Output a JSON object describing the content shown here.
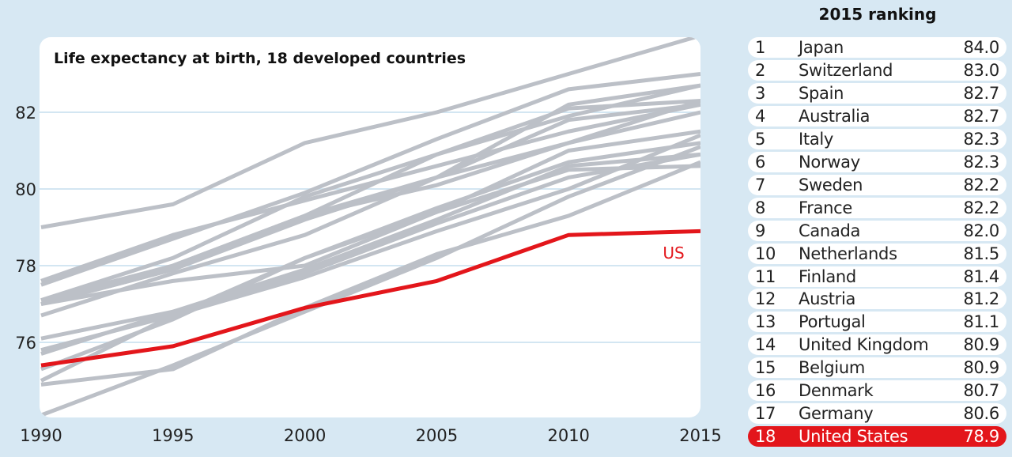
{
  "chart_data": {
    "type": "line",
    "title": "Life expectancy at birth, 18 developed countries",
    "xlabel": "",
    "ylabel": "",
    "x": [
      1990,
      1995,
      2000,
      2005,
      2010,
      2015
    ],
    "xticks": [
      "1990",
      "1995",
      "2000",
      "2005",
      "2010",
      "2015"
    ],
    "yticks": [
      "76",
      "78",
      "80",
      "82"
    ],
    "ytick_values": [
      76,
      78,
      80,
      82
    ],
    "xlim": [
      1990,
      2015
    ],
    "ylim": [
      74,
      84
    ],
    "grid": true,
    "colors": {
      "highlight": "#e3161b",
      "others": "#bcc0c7",
      "grid": "#d3e6f2",
      "background": "#d7e8f3"
    },
    "series": [
      {
        "country": "Japan",
        "values": [
          79.0,
          79.6,
          81.2,
          82.0,
          83.0,
          84.0
        ]
      },
      {
        "country": "Switzerland",
        "values": [
          77.5,
          78.7,
          79.9,
          81.3,
          82.6,
          83.0
        ]
      },
      {
        "country": "Spain",
        "values": [
          77.0,
          78.0,
          79.3,
          80.3,
          82.2,
          82.7
        ]
      },
      {
        "country": "Australia",
        "values": [
          77.0,
          77.9,
          79.3,
          80.9,
          81.9,
          82.7
        ]
      },
      {
        "country": "Italy",
        "values": [
          77.1,
          78.2,
          79.8,
          80.9,
          82.1,
          82.3
        ]
      },
      {
        "country": "Norway",
        "values": [
          76.7,
          77.8,
          78.8,
          80.3,
          81.2,
          82.3
        ]
      },
      {
        "country": "Sweden",
        "values": [
          77.6,
          78.8,
          79.7,
          80.6,
          81.5,
          82.2
        ]
      },
      {
        "country": "France",
        "values": [
          77.0,
          77.9,
          79.2,
          80.3,
          81.8,
          82.2
        ]
      },
      {
        "country": "Canada",
        "values": [
          77.1,
          78.0,
          79.3,
          80.1,
          81.2,
          82.0
        ]
      },
      {
        "country": "Netherlands",
        "values": [
          77.0,
          77.6,
          78.0,
          79.4,
          81.0,
          81.5
        ]
      },
      {
        "country": "Finland",
        "values": [
          75.0,
          76.7,
          77.7,
          78.9,
          80.0,
          81.4
        ]
      },
      {
        "country": "Austria",
        "values": [
          75.8,
          76.7,
          78.2,
          79.5,
          80.7,
          81.2
        ]
      },
      {
        "country": "Portugal",
        "values": [
          74.1,
          75.4,
          76.8,
          78.2,
          79.8,
          81.1
        ]
      },
      {
        "country": "United Kingdom",
        "values": [
          75.7,
          76.8,
          77.9,
          79.2,
          80.6,
          80.9
        ]
      },
      {
        "country": "Belgium",
        "values": [
          76.1,
          76.8,
          77.8,
          79.1,
          80.3,
          80.9
        ]
      },
      {
        "country": "Denmark",
        "values": [
          74.9,
          75.3,
          76.9,
          78.3,
          79.3,
          80.7
        ]
      },
      {
        "country": "Germany",
        "values": [
          75.3,
          76.6,
          78.2,
          79.4,
          80.5,
          80.6
        ]
      },
      {
        "country": "United States",
        "name": "US",
        "highlight": true,
        "values": [
          75.4,
          75.9,
          76.9,
          77.6,
          78.8,
          78.9
        ]
      }
    ]
  },
  "ranking": {
    "title": "2015 ranking",
    "rows": [
      {
        "rank": "1",
        "country": "Japan",
        "value": "84.0"
      },
      {
        "rank": "2",
        "country": "Switzerland",
        "value": "83.0"
      },
      {
        "rank": "3",
        "country": "Spain",
        "value": "82.7"
      },
      {
        "rank": "4",
        "country": "Australia",
        "value": "82.7"
      },
      {
        "rank": "5",
        "country": "Italy",
        "value": "82.3"
      },
      {
        "rank": "6",
        "country": "Norway",
        "value": "82.3"
      },
      {
        "rank": "7",
        "country": "Sweden",
        "value": "82.2"
      },
      {
        "rank": "8",
        "country": "France",
        "value": "82.2"
      },
      {
        "rank": "9",
        "country": "Canada",
        "value": "82.0"
      },
      {
        "rank": "10",
        "country": "Netherlands",
        "value": "81.5"
      },
      {
        "rank": "11",
        "country": "Finland",
        "value": "81.4"
      },
      {
        "rank": "12",
        "country": "Austria",
        "value": "81.2"
      },
      {
        "rank": "13",
        "country": "Portugal",
        "value": "81.1"
      },
      {
        "rank": "14",
        "country": "United Kingdom",
        "value": "80.9"
      },
      {
        "rank": "15",
        "country": "Belgium",
        "value": "80.9"
      },
      {
        "rank": "16",
        "country": "Denmark",
        "value": "80.7"
      },
      {
        "rank": "17",
        "country": "Germany",
        "value": "80.6"
      },
      {
        "rank": "18",
        "country": "United States",
        "value": "78.9",
        "highlight": true
      }
    ]
  }
}
